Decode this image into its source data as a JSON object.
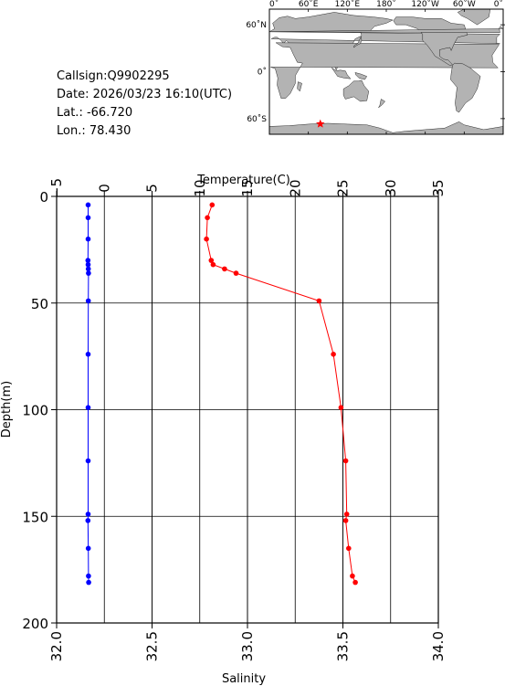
{
  "info": {
    "callsign": "Callsign:Q9902295",
    "date": "Date:  2026/03/23 16:10(UTC)",
    "lat": "Lat.:  -66.720",
    "lon": "Lon.:   78.430"
  },
  "map": {
    "lon_ticks": [
      "0˚",
      "60˚E",
      "120˚E",
      "180˚",
      "120˚W",
      "60˚W",
      "0˚"
    ],
    "lat_ticks": [
      "60˚N",
      "0˚",
      "60˚S"
    ],
    "marker": {
      "lon": 78.43,
      "lat": -66.72,
      "color": "#ff0000"
    },
    "colors": {
      "land": "#b3b3b3",
      "ocean": "#ffffff"
    }
  },
  "chart_data": {
    "type": "line",
    "ylabel": "Depth(m)",
    "ylim": [
      200,
      0
    ],
    "yticks": [
      "0",
      "50",
      "100",
      "150",
      "200"
    ],
    "temperature_axis": {
      "label": "Temperature(C)",
      "range": [
        -5,
        35
      ],
      "ticks": [
        "−5",
        "0",
        "5",
        "10",
        "15",
        "20",
        "25",
        "30",
        "35"
      ]
    },
    "salinity_axis": {
      "label": "Salinity",
      "range": [
        32.0,
        34.0
      ],
      "ticks": [
        "32.0",
        "32.5",
        "33.0",
        "33.5",
        "34.0"
      ]
    },
    "grid": true,
    "series": [
      {
        "quantity": "temperature",
        "color": "#ff0000",
        "depth": [
          4,
          10,
          20,
          30,
          32,
          34,
          36,
          49,
          74,
          99,
          124,
          149,
          152,
          165,
          178,
          181
        ],
        "values": [
          11.3,
          10.8,
          10.7,
          11.2,
          11.4,
          12.6,
          13.8,
          22.5,
          24.0,
          24.8,
          25.3,
          25.4,
          25.3,
          25.6,
          26.0,
          26.3
        ]
      },
      {
        "quantity": "salinity",
        "color": "#0000ff",
        "depth": [
          4,
          10,
          20,
          30,
          32,
          34,
          36,
          49,
          74,
          99,
          124,
          149,
          152,
          165,
          178,
          181
        ],
        "values": [
          32.165,
          32.165,
          32.165,
          32.164,
          32.165,
          32.166,
          32.167,
          32.166,
          32.165,
          32.165,
          32.165,
          32.165,
          32.164,
          32.166,
          32.167,
          32.168
        ]
      }
    ]
  }
}
